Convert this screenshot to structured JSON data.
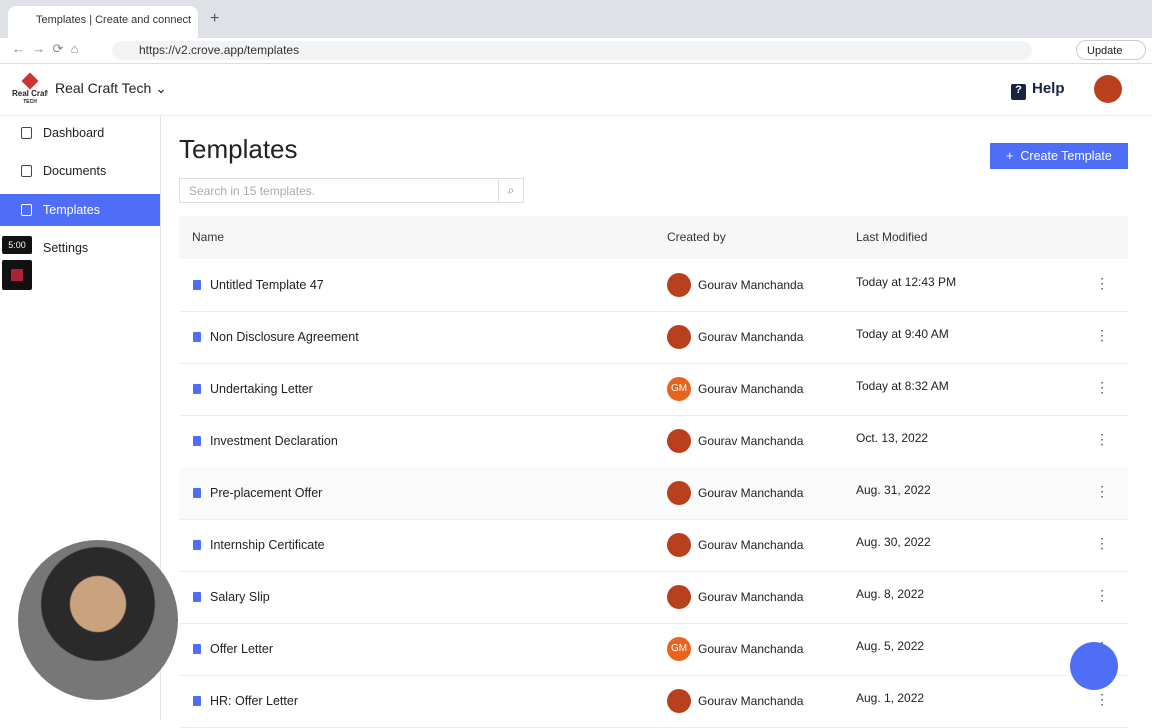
{
  "browser": {
    "tab_title": "Templates | Create and connect",
    "url": "https://v2.crove.app/templates",
    "update": "Update"
  },
  "header": {
    "logo_text": "Real Craft",
    "logo_sub": "TECH",
    "workspace": "Real Craft Tech",
    "help": "Help"
  },
  "sidebar": {
    "items": [
      "Dashboard",
      "Documents",
      "Templates",
      "Settings"
    ],
    "active": 2
  },
  "timer": "5:00",
  "page": {
    "title": "Templates",
    "search_placeholder": "Search in 15 templates.",
    "create_button": "Create Template"
  },
  "table": {
    "columns": [
      "Name",
      "Created by",
      "Last Modified"
    ],
    "rows": [
      {
        "name": "Untitled Template 47",
        "created_by": "Gourav Manchanda",
        "modified": "Today at 12:43 PM"
      },
      {
        "name": "Non Disclosure Agreement",
        "created_by": "Gourav Manchanda",
        "modified": "Today at 9:40 AM"
      },
      {
        "name": "Undertaking Letter",
        "initials": "GM",
        "created_by": "Gourav Manchanda",
        "modified": "Today at 8:32 AM"
      },
      {
        "name": "Investment Declaration",
        "created_by": "Gourav Manchanda",
        "modified": "Oct. 13, 2022"
      },
      {
        "name": "Pre-placement Offer",
        "created_by": "Gourav Manchanda",
        "modified": "Aug. 31, 2022"
      },
      {
        "name": "Internship Certificate",
        "created_by": "Gourav Manchanda",
        "modified": "Aug. 30, 2022"
      },
      {
        "name": "Salary Slip",
        "created_by": "Gourav Manchanda",
        "modified": "Aug. 8, 2022"
      },
      {
        "name": "Offer Letter",
        "initials": "GM",
        "created_by": "Gourav Manchanda",
        "modified": "Aug. 5, 2022"
      },
      {
        "name": "HR: Offer Letter",
        "created_by": "Gourav Manchanda",
        "modified": "Aug. 1, 2022"
      }
    ]
  }
}
